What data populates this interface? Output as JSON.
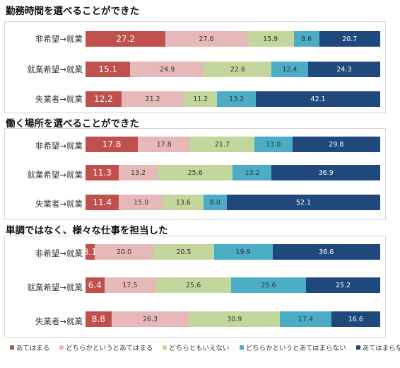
{
  "chart_data": [
    {
      "type": "bar",
      "orientation": "horizontal",
      "stacked": "percent",
      "title": "勤務時間を選べることができた",
      "categories": [
        "非希望→就業",
        "就業希望→就業",
        "失業者→就業"
      ],
      "series": [
        {
          "name": "あてはまる",
          "values": [
            27.2,
            15.1,
            12.2
          ]
        },
        {
          "name": "どちらかというとあてはまる",
          "values": [
            27.6,
            24.9,
            21.2
          ]
        },
        {
          "name": "どちらともいえない",
          "values": [
            15.9,
            22.6,
            11.2
          ]
        },
        {
          "name": "どちらかというとあてはまらない",
          "values": [
            8.6,
            12.4,
            13.2
          ]
        },
        {
          "name": "あてはまらない",
          "values": [
            20.7,
            24.3,
            42.1
          ]
        }
      ]
    },
    {
      "type": "bar",
      "orientation": "horizontal",
      "stacked": "percent",
      "title": "働く場所を選べることができた",
      "categories": [
        "非希望→就業",
        "就業希望→就業",
        "失業者→就業"
      ],
      "series": [
        {
          "name": "あてはまる",
          "values": [
            17.8,
            11.3,
            11.4
          ]
        },
        {
          "name": "どちらかというとあてはまる",
          "values": [
            17.8,
            13.2,
            15.0
          ]
        },
        {
          "name": "どちらともいえない",
          "values": [
            21.7,
            25.6,
            13.6
          ]
        },
        {
          "name": "どちらかというとあてはまらない",
          "values": [
            13.0,
            13.2,
            8.0
          ]
        },
        {
          "name": "あてはまらない",
          "values": [
            29.8,
            36.9,
            52.1
          ]
        }
      ]
    },
    {
      "type": "bar",
      "orientation": "horizontal",
      "stacked": "percent",
      "title": "単調ではなく、様々な仕事を担当した",
      "categories": [
        "非希望→就業",
        "就業希望→就業",
        "失業者→就業"
      ],
      "series": [
        {
          "name": "あてはまる",
          "values": [
            3.1,
            6.4,
            8.8
          ]
        },
        {
          "name": "どちらかというとあてはまる",
          "values": [
            20.0,
            17.5,
            26.3
          ]
        },
        {
          "name": "どちらともいえない",
          "values": [
            20.5,
            25.6,
            30.9
          ]
        },
        {
          "name": "どちらかというとあてはまらない",
          "values": [
            19.9,
            25.6,
            17.4
          ]
        },
        {
          "name": "あてはまらない",
          "values": [
            36.6,
            25.2,
            16.6
          ]
        }
      ]
    }
  ],
  "colors": [
    "#c0504d",
    "#e6b9b8",
    "#c3d69b",
    "#4bacc6",
    "#1f497d"
  ],
  "legend": {
    "position": "bottom",
    "items": [
      "あてはまる",
      "どちらかというとあてはまる",
      "どちらともいえない",
      "どちらかというとあてはまらない",
      "あてはまらない"
    ]
  }
}
